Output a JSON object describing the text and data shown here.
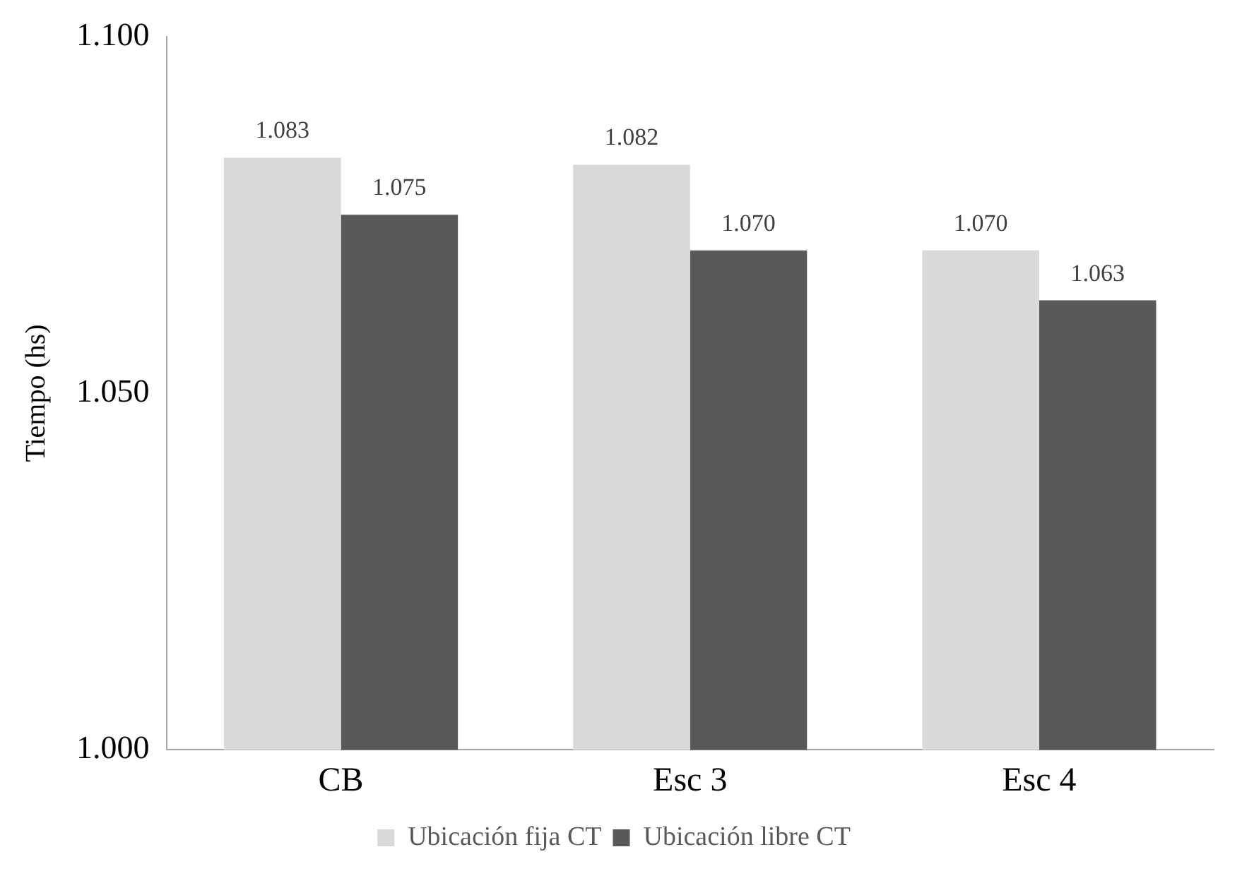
{
  "chart_data": {
    "type": "bar",
    "ylabel": "Tiempo (hs)",
    "categories": [
      "CB",
      "Esc 3",
      "Esc 4"
    ],
    "series": [
      {
        "name": "Ubicación fija CT",
        "color": "#d9d9d9",
        "values": [
          1.083,
          1.082,
          1.07
        ],
        "value_labels": [
          "1.083",
          "1.082",
          "1.070"
        ]
      },
      {
        "name": "Ubicación libre CT",
        "color": "#595959",
        "values": [
          1.075,
          1.07,
          1.063
        ],
        "value_labels": [
          "1.075",
          "1.070",
          "1.063"
        ]
      }
    ],
    "ylim": [
      1.0,
      1.1
    ],
    "yticks": [
      {
        "value": 1.0,
        "label": "1.000"
      },
      {
        "value": 1.05,
        "label": "1.050"
      },
      {
        "value": 1.1,
        "label": "1.100"
      }
    ],
    "grid": false,
    "legend": "bottom"
  }
}
